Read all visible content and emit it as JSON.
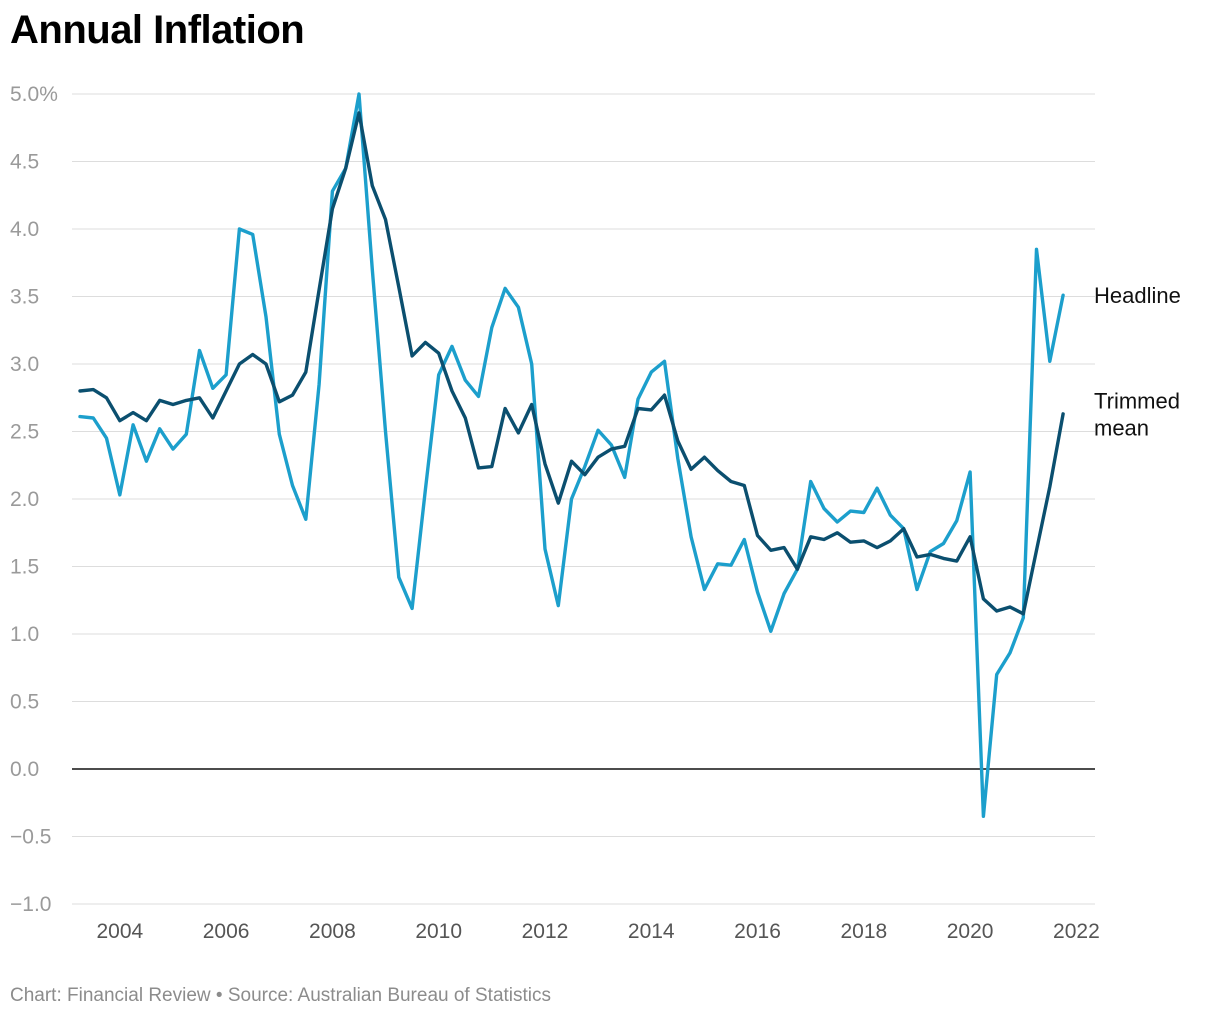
{
  "chart_data": {
    "type": "line",
    "title": "Annual Inflation",
    "xlabel": "",
    "ylabel": "",
    "xlim": [
      2003.1,
      2022.35
    ],
    "ylim": [
      -1.0,
      5.0
    ],
    "y_ticks": [
      -1.0,
      -0.5,
      0.0,
      0.5,
      1.0,
      1.5,
      2.0,
      2.5,
      3.0,
      3.5,
      4.0,
      4.5,
      5.0
    ],
    "y_tick_labels": [
      "−1.0",
      "−0.5",
      "0.0",
      "0.5",
      "1.0",
      "1.5",
      "2.0",
      "2.5",
      "3.0",
      "3.5",
      "4.0",
      "4.5",
      "5.0%"
    ],
    "x_ticks": [
      2004,
      2006,
      2008,
      2010,
      2012,
      2014,
      2016,
      2018,
      2020,
      2022
    ],
    "x_tick_labels": [
      "2004",
      "2006",
      "2008",
      "2010",
      "2012",
      "2014",
      "2016",
      "2018",
      "2020",
      "2022"
    ],
    "grid": true,
    "zero_line": true,
    "legend": "series labels at right end of lines",
    "series": [
      {
        "name": "Headline",
        "label": "Headline",
        "color": "#1c9fcc",
        "x": [
          2003.25,
          2003.5,
          2003.75,
          2004.0,
          2004.25,
          2004.5,
          2004.75,
          2005.0,
          2005.25,
          2005.5,
          2005.75,
          2006.0,
          2006.25,
          2006.5,
          2006.75,
          2007.0,
          2007.25,
          2007.5,
          2007.75,
          2008.0,
          2008.25,
          2008.5,
          2008.75,
          2009.0,
          2009.25,
          2009.5,
          2009.75,
          2010.0,
          2010.25,
          2010.5,
          2010.75,
          2011.0,
          2011.25,
          2011.5,
          2011.75,
          2012.0,
          2012.25,
          2012.5,
          2012.75,
          2013.0,
          2013.25,
          2013.5,
          2013.75,
          2014.0,
          2014.25,
          2014.5,
          2014.75,
          2015.0,
          2015.25,
          2015.5,
          2015.75,
          2016.0,
          2016.25,
          2016.5,
          2016.75,
          2017.0,
          2017.25,
          2017.5,
          2017.75,
          2018.0,
          2018.25,
          2018.5,
          2018.75,
          2019.0,
          2019.25,
          2019.5,
          2019.75,
          2020.0,
          2020.25,
          2020.5,
          2020.75,
          2021.0,
          2021.25,
          2021.5,
          2021.75,
          2022.0
        ],
        "values": [
          2.61,
          2.6,
          2.45,
          2.03,
          2.55,
          2.28,
          2.52,
          2.37,
          2.48,
          3.1,
          2.82,
          2.92,
          4.0,
          3.96,
          3.35,
          2.48,
          2.1,
          1.85,
          2.85,
          4.28,
          4.45,
          5.0,
          3.7,
          2.5,
          1.42,
          1.19,
          2.07,
          2.92,
          3.13,
          2.88,
          2.76,
          3.27,
          3.56,
          3.42,
          3.0,
          1.63,
          1.21,
          2.0,
          2.24,
          2.51,
          2.4,
          2.16,
          2.74,
          2.94,
          3.02,
          2.3,
          1.72,
          1.33,
          1.52,
          1.51,
          1.7,
          1.31,
          1.02,
          1.3,
          1.48,
          2.13,
          1.93,
          1.83,
          1.91,
          1.9,
          2.08,
          1.88,
          1.78,
          1.33,
          1.61,
          1.67,
          1.84,
          2.2,
          -0.35,
          0.7,
          0.86,
          1.12,
          3.85,
          3.02,
          3.51,
          null
        ]
      },
      {
        "name": "Trimmed mean",
        "label": [
          "Trimmed",
          "mean"
        ],
        "color": "#0b4f6f",
        "x": [
          2003.25,
          2003.5,
          2003.75,
          2004.0,
          2004.25,
          2004.5,
          2004.75,
          2005.0,
          2005.25,
          2005.5,
          2005.75,
          2006.0,
          2006.25,
          2006.5,
          2006.75,
          2007.0,
          2007.25,
          2007.5,
          2007.75,
          2008.0,
          2008.25,
          2008.5,
          2008.75,
          2009.0,
          2009.25,
          2009.5,
          2009.75,
          2010.0,
          2010.25,
          2010.5,
          2010.75,
          2011.0,
          2011.25,
          2011.5,
          2011.75,
          2012.0,
          2012.25,
          2012.5,
          2012.75,
          2013.0,
          2013.25,
          2013.5,
          2013.75,
          2014.0,
          2014.25,
          2014.5,
          2014.75,
          2015.0,
          2015.25,
          2015.5,
          2015.75,
          2016.0,
          2016.25,
          2016.5,
          2016.75,
          2017.0,
          2017.25,
          2017.5,
          2017.75,
          2018.0,
          2018.25,
          2018.5,
          2018.75,
          2019.0,
          2019.25,
          2019.5,
          2019.75,
          2020.0,
          2020.25,
          2020.5,
          2020.75,
          2021.0,
          2021.25,
          2021.5,
          2021.75,
          2022.0
        ],
        "values": [
          2.8,
          2.81,
          2.75,
          2.58,
          2.64,
          2.58,
          2.73,
          2.7,
          2.73,
          2.75,
          2.6,
          2.8,
          3.0,
          3.07,
          3.0,
          2.72,
          2.77,
          2.94,
          3.55,
          4.15,
          4.45,
          4.86,
          4.32,
          4.07,
          3.57,
          3.06,
          3.16,
          3.08,
          2.8,
          2.6,
          2.23,
          2.24,
          2.67,
          2.49,
          2.7,
          2.26,
          1.97,
          2.28,
          2.18,
          2.31,
          2.37,
          2.39,
          2.67,
          2.66,
          2.77,
          2.43,
          2.22,
          2.31,
          2.21,
          2.13,
          2.1,
          1.73,
          1.62,
          1.64,
          1.48,
          1.72,
          1.7,
          1.75,
          1.68,
          1.69,
          1.64,
          1.69,
          1.78,
          1.57,
          1.59,
          1.56,
          1.54,
          1.72,
          1.26,
          1.17,
          1.2,
          1.15,
          1.62,
          2.09,
          2.63,
          null
        ]
      }
    ]
  },
  "footer": "Chart: Financial Review • Source: Australian Bureau of Statistics"
}
